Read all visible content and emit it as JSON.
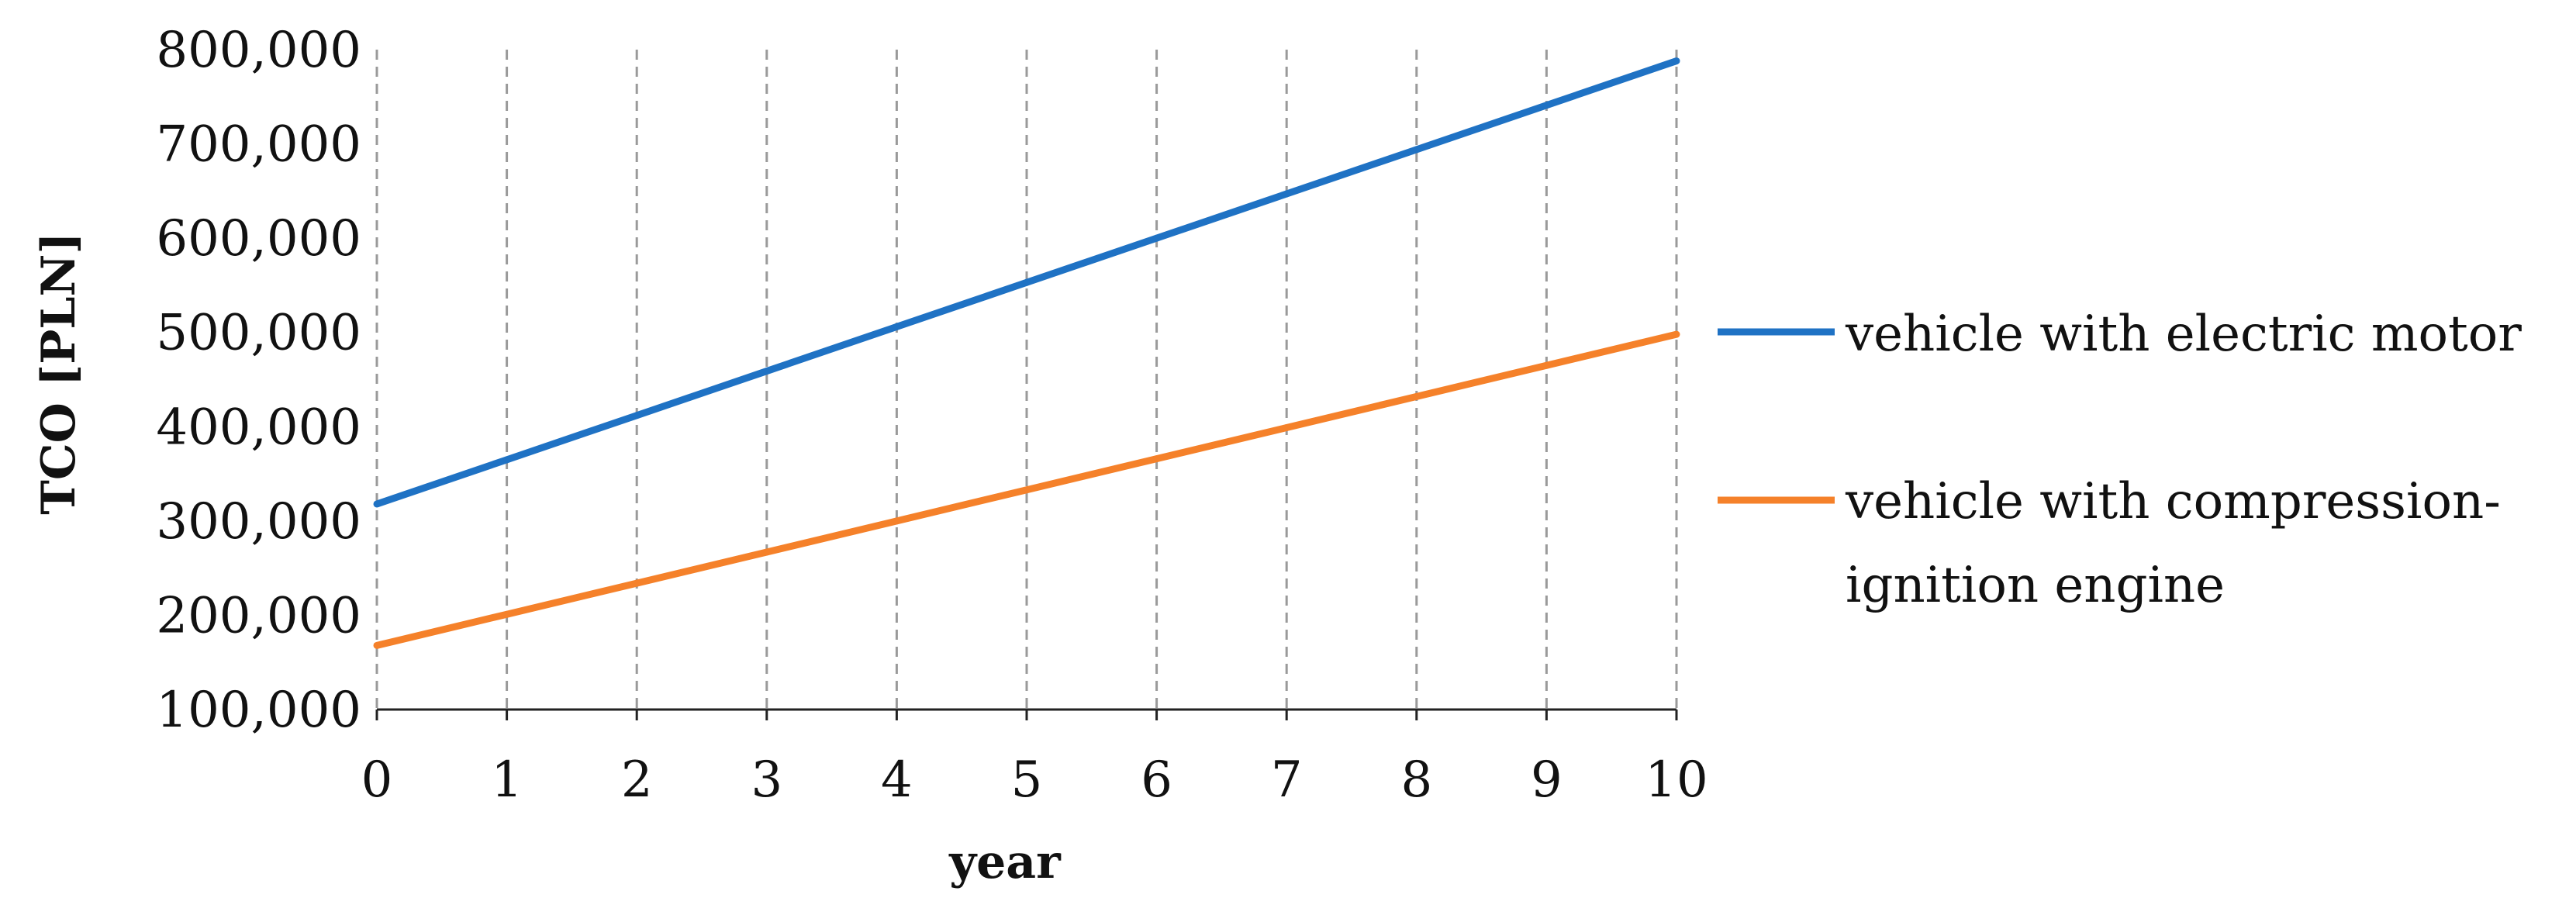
{
  "chart_data": {
    "type": "line",
    "title": "",
    "xlabel": "year",
    "ylabel": "TCO [PLN]",
    "x": [
      0,
      1,
      2,
      3,
      4,
      5,
      6,
      7,
      8,
      9,
      10
    ],
    "x_tick_labels": [
      "0",
      "1",
      "2",
      "3",
      "4",
      "5",
      "6",
      "7",
      "8",
      "9",
      "10"
    ],
    "y_tick_values": [
      100000,
      200000,
      300000,
      400000,
      500000,
      600000,
      700000,
      800000
    ],
    "y_tick_labels": [
      "100,000",
      "200,000",
      "300,000",
      "400,000",
      "500,000",
      "600,000",
      "700,000",
      "800,000"
    ],
    "xlim": [
      0,
      10
    ],
    "ylim": [
      100000,
      800000
    ],
    "grid": {
      "vertical": true,
      "horizontal": false,
      "style": "dashed"
    },
    "legend_position": "right",
    "series": [
      {
        "name": "vehicle with electric motor",
        "legend_lines": [
          "vehicle with electric motor"
        ],
        "color": "#1f72c4",
        "values": [
          318000,
          365000,
          412000,
          459000,
          506000,
          553000,
          600000,
          647000,
          694000,
          741000,
          788000
        ]
      },
      {
        "name": "vehicle with compression-ignition engine",
        "legend_lines": [
          "vehicle with compression-",
          "ignition engine"
        ],
        "color": "#f5812a",
        "values": [
          168000,
          201000,
          234000,
          267000,
          300000,
          333000,
          366000,
          399000,
          432000,
          465000,
          498000
        ]
      }
    ]
  }
}
